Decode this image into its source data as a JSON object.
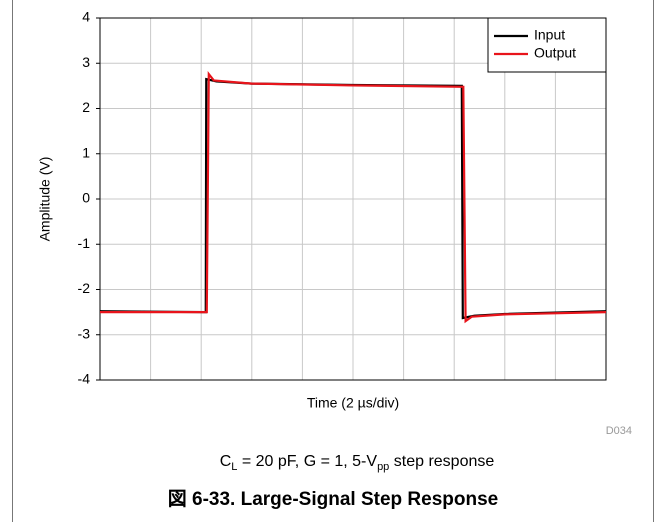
{
  "chart_data": {
    "type": "line",
    "xlabel": "Time (2 µs/div)",
    "ylabel": "Amplitude (V)",
    "xlim": [
      0,
      20
    ],
    "xticks": [
      0,
      2,
      4,
      6,
      8,
      10,
      12,
      14,
      16,
      18,
      20
    ],
    "ylim": [
      -4,
      4
    ],
    "yticks": [
      -4,
      -3,
      -2,
      -1,
      0,
      1,
      2,
      3,
      4
    ],
    "grid": true,
    "legend": "upper right",
    "series": [
      {
        "name": "Input",
        "color": "#000000",
        "x": [
          0,
          4.18,
          4.2,
          4.6,
          6,
          10,
          14.3,
          14.34,
          14.8,
          16,
          20
        ],
        "values": [
          -2.48,
          -2.5,
          2.65,
          2.6,
          2.55,
          2.52,
          2.5,
          -2.63,
          -2.58,
          -2.54,
          -2.48
        ]
      },
      {
        "name": "Output",
        "color": "#e8141b",
        "x": [
          0,
          4.22,
          4.3,
          4.5,
          6,
          10,
          14.36,
          14.45,
          14.7,
          16,
          20
        ],
        "values": [
          -2.5,
          -2.5,
          2.76,
          2.62,
          2.55,
          2.51,
          2.48,
          -2.7,
          -2.6,
          -2.55,
          -2.5
        ]
      }
    ],
    "code": "D034",
    "caption": [
      "C",
      "L",
      " = 20 pF, G = 1, 5-V",
      "pp",
      " step response"
    ],
    "figure_title": "図 6-33. Large-Signal Step Response"
  }
}
